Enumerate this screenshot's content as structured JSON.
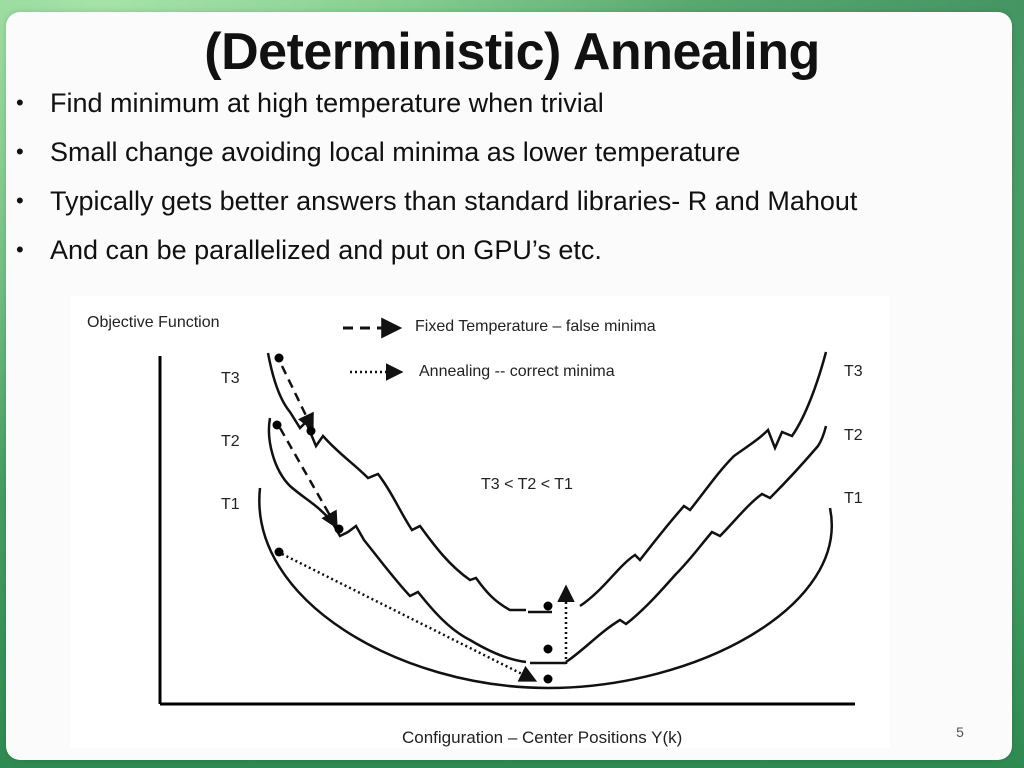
{
  "slide": {
    "title": "(Deterministic) Annealing",
    "bullets": [
      "Find minimum at high temperature when trivial",
      "Small change avoiding local minima as lower temperature",
      "Typically gets better answers than standard libraries- R and Mahout",
      "And can be parallelized and put on GPU’s etc."
    ],
    "bullet_glyph": "•",
    "page_number": "5"
  },
  "diagram": {
    "y_axis_label": "Objective Function",
    "x_axis_label": "Configuration – Center Positions Y(k)",
    "legend": {
      "dashed": "Fixed Temperature – false minima",
      "dotted": "Annealing -- correct minima"
    },
    "curve_labels_left": [
      "T3",
      "T2",
      "T1"
    ],
    "curve_labels_right": [
      "T3",
      "T2",
      "T1"
    ],
    "relation_text": "T3 < T2 < T1"
  },
  "colors": {
    "background": "#3d9a5a",
    "card": "#fbfbfb",
    "text": "#111111"
  }
}
